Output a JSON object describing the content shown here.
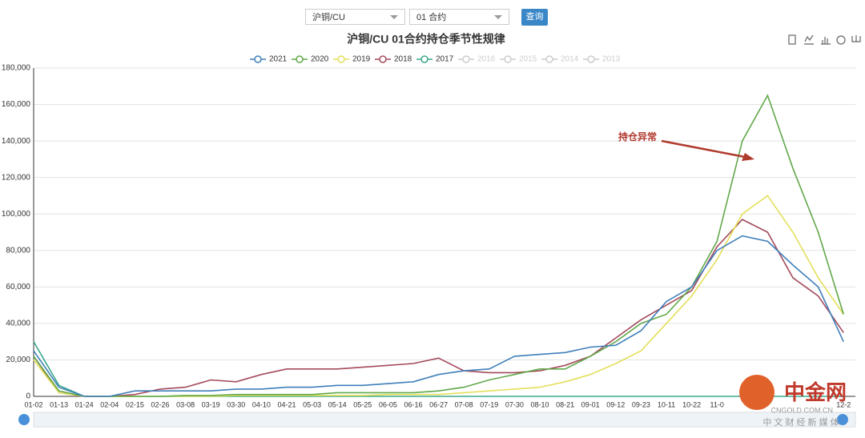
{
  "controls": {
    "variety": "沪铜/CU",
    "contract": "01 合约",
    "query": "查询"
  },
  "chart_data": {
    "type": "line",
    "title": "沪铜/CU 01合约持仓季节性规律",
    "annotation": "持仓异常",
    "categories": [
      "01-02",
      "01-13",
      "01-24",
      "02-04",
      "02-15",
      "02-26",
      "03-08",
      "03-19",
      "03-30",
      "04-10",
      "04-21",
      "05-03",
      "05-14",
      "05-25",
      "06-05",
      "06-16",
      "06-27",
      "07-08",
      "07-19",
      "07-30",
      "08-10",
      "08-21",
      "09-01",
      "09-12",
      "09-23",
      "10-11",
      "10-22",
      "11-0",
      null,
      null,
      null,
      null,
      "12-2"
    ],
    "ylim": [
      0,
      180000
    ],
    "yticks": [
      0,
      {
        "value": 20000,
        "label": "20,000"
      },
      {
        "value": 40000,
        "label": "40,000"
      },
      {
        "value": 60000,
        "label": "60,000"
      },
      {
        "value": 80000,
        "label": "80,000"
      },
      {
        "value": 100000,
        "label": "100,000"
      },
      {
        "value": 120000,
        "label": "120,000"
      },
      {
        "value": 140000,
        "label": "140,000"
      },
      {
        "value": 160000,
        "label": "160,000"
      },
      {
        "value": 180000,
        "label": "180,000"
      }
    ],
    "grid": true,
    "series": [
      {
        "name": "2021",
        "color": "#3f7fba",
        "values": [
          25000,
          5000,
          0,
          0,
          3000,
          3000,
          3000,
          3000,
          4000,
          4000,
          5000,
          5000,
          6000,
          6000,
          7000,
          8000,
          12000,
          14000,
          15000,
          22000,
          23000,
          24000,
          27000,
          28000,
          36000,
          52000,
          60000,
          80000,
          88000,
          85000,
          72000,
          60000,
          30000
        ]
      },
      {
        "name": "2020",
        "color": "#62a84a",
        "values": [
          22000,
          3000,
          0,
          0,
          0,
          0,
          500,
          500,
          1000,
          1000,
          1000,
          1000,
          2000,
          2000,
          2000,
          2000,
          3000,
          5000,
          9000,
          12000,
          15000,
          15000,
          22000,
          30000,
          40000,
          45000,
          60000,
          85000,
          140000,
          165000,
          125000,
          90000,
          45000
        ]
      },
      {
        "name": "2019",
        "color": "#e4df5c",
        "values": [
          20000,
          2000,
          0,
          0,
          0,
          0,
          0,
          0,
          500,
          500,
          500,
          500,
          500,
          500,
          1000,
          1000,
          1000,
          2000,
          3000,
          4000,
          5000,
          8000,
          12000,
          18000,
          25000,
          40000,
          55000,
          75000,
          100000,
          110000,
          90000,
          65000,
          45000
        ]
      },
      {
        "name": "2018",
        "color": "#a44a5c",
        "values": [
          22000,
          2000,
          0,
          0,
          1000,
          4000,
          5000,
          9000,
          8000,
          12000,
          15000,
          15000,
          15000,
          16000,
          17000,
          18000,
          21000,
          14000,
          13000,
          13000,
          14000,
          17000,
          22000,
          32000,
          42000,
          50000,
          58000,
          82000,
          97000,
          90000,
          65000,
          55000,
          35000
        ]
      },
      {
        "name": "2017",
        "color": "#3aa98c",
        "values": [
          30000,
          6000,
          0,
          0,
          0,
          0,
          0,
          0,
          0,
          0,
          0,
          0,
          0,
          0,
          0,
          0,
          0,
          0,
          0,
          0,
          0,
          0,
          0,
          0,
          0,
          0,
          0,
          0,
          0,
          0,
          0,
          0,
          0
        ]
      },
      {
        "name": "2016",
        "color": "#cccccc",
        "hidden": true,
        "values": [
          null,
          null,
          null,
          null,
          null,
          null,
          null,
          null,
          null,
          null,
          null,
          null,
          null,
          null,
          null,
          null,
          null,
          null,
          null,
          null,
          null,
          null,
          null,
          null,
          null,
          null,
          null,
          null,
          null,
          null,
          null,
          null,
          null
        ]
      },
      {
        "name": "2015",
        "color": "#cccccc",
        "hidden": true,
        "values": [
          null,
          null,
          null,
          null,
          null,
          null,
          null,
          null,
          null,
          null,
          null,
          null,
          null,
          null,
          null,
          null,
          null,
          null,
          null,
          null,
          null,
          null,
          null,
          null,
          null,
          null,
          null,
          null,
          null,
          null,
          null,
          null,
          null
        ]
      },
      {
        "name": "2014",
        "color": "#cccccc",
        "hidden": true,
        "values": [
          null,
          null,
          null,
          null,
          null,
          null,
          null,
          null,
          null,
          null,
          null,
          null,
          null,
          null,
          null,
          null,
          null,
          null,
          null,
          null,
          null,
          null,
          null,
          null,
          null,
          null,
          null,
          null,
          null,
          null,
          null,
          null,
          null
        ]
      },
      {
        "name": "2013",
        "color": "#cccccc",
        "hidden": true,
        "values": [
          null,
          null,
          null,
          null,
          null,
          null,
          null,
          null,
          null,
          null,
          null,
          null,
          null,
          null,
          null,
          null,
          null,
          null,
          null,
          null,
          null,
          null,
          null,
          null,
          null,
          null,
          null,
          null,
          null,
          null,
          null,
          null,
          null
        ]
      }
    ]
  },
  "watermark": {
    "brand": "中金网",
    "domain": "CNGOLD.COM.CN",
    "slogan": "中 文 财 经 新 媒 体"
  }
}
